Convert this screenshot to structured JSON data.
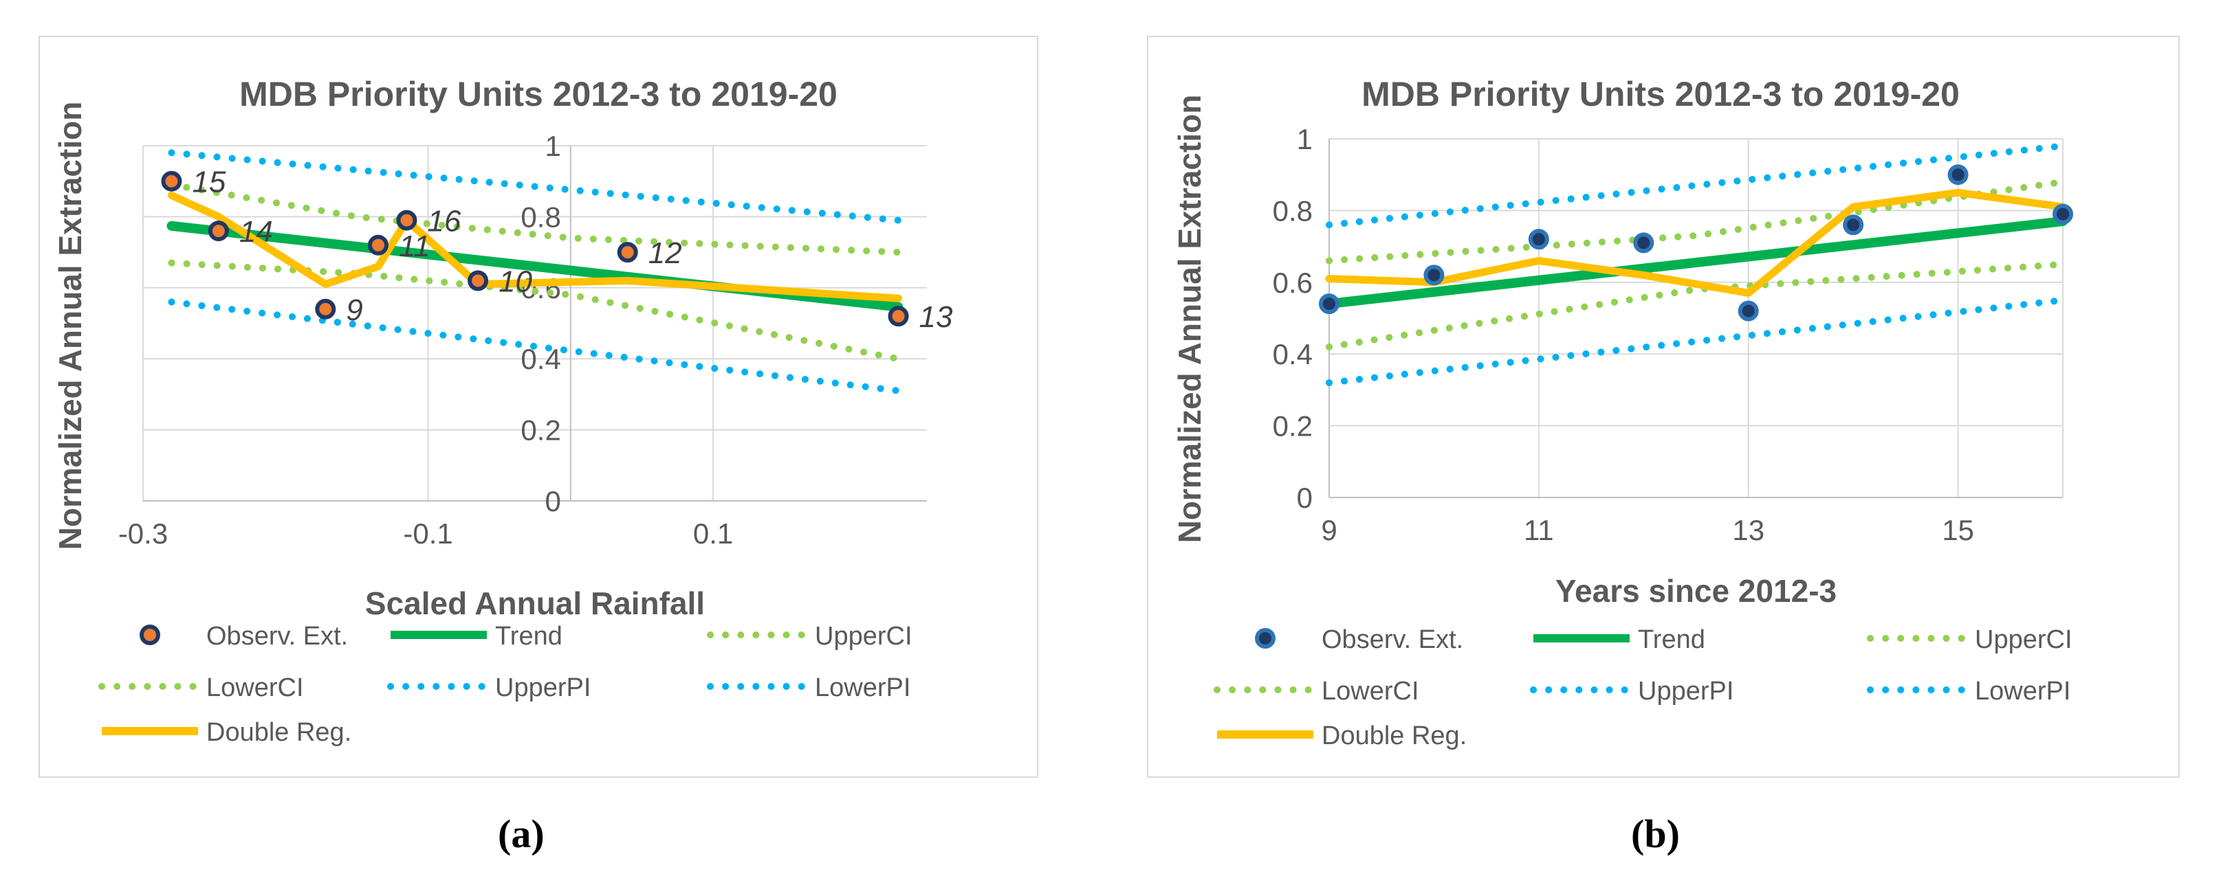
{
  "chart_data": [
    {
      "type": "scatter",
      "panel_label": "a",
      "title": "MDB Priority Units 2012-3 to 2019-20",
      "xlabel": "Scaled Annual Rainfall",
      "ylabel": "Normalized Annual Extraction",
      "xlim": [
        -0.3,
        0.25
      ],
      "ylim": [
        0,
        1
      ],
      "x_ticks": [
        -0.3,
        -0.1,
        0.1
      ],
      "x_tick_labels": [
        "-0.3",
        "-0.1",
        "0.1"
      ],
      "y_ticks": [
        0,
        0.2,
        0.4,
        0.6,
        0.8,
        1
      ],
      "y_tick_labels": [
        "0",
        "0.2",
        "0.4",
        "0.6",
        "0.8",
        "1"
      ],
      "y_axis_crosses_at_x": 0,
      "grid": true,
      "legend_position": "bottom",
      "points": {
        "name": "Observ. Ext.",
        "color": "#ED7D31",
        "values": [
          {
            "x": -0.28,
            "y": 0.9,
            "label": "15"
          },
          {
            "x": -0.247,
            "y": 0.76,
            "label": "14"
          },
          {
            "x": -0.172,
            "y": 0.54,
            "label": "9"
          },
          {
            "x": -0.135,
            "y": 0.72,
            "label": "11"
          },
          {
            "x": -0.115,
            "y": 0.79,
            "label": "16"
          },
          {
            "x": -0.065,
            "y": 0.62,
            "label": "10"
          },
          {
            "x": 0.04,
            "y": 0.7,
            "label": "12"
          },
          {
            "x": 0.23,
            "y": 0.52,
            "label": "13"
          }
        ]
      },
      "lines": [
        {
          "name": "Trend",
          "color": "#00B050",
          "style": "solid",
          "x": [
            -0.28,
            0.23
          ],
          "y": [
            0.774,
            0.546
          ]
        },
        {
          "name": "UpperCI",
          "color": "#92D050",
          "style": "dotted",
          "x": [
            -0.28,
            -0.15,
            0.0,
            0.23
          ],
          "y": [
            0.89,
            0.8,
            0.74,
            0.7
          ]
        },
        {
          "name": "LowerCI",
          "color": "#92D050",
          "style": "dotted",
          "x": [
            -0.28,
            -0.15,
            0.0,
            0.23
          ],
          "y": [
            0.67,
            0.64,
            0.58,
            0.4
          ]
        },
        {
          "name": "UpperPI",
          "color": "#00B0F0",
          "style": "dotted",
          "x": [
            -0.28,
            0.23
          ],
          "y": [
            0.98,
            0.79
          ]
        },
        {
          "name": "LowerPI",
          "color": "#00B0F0",
          "style": "dotted",
          "x": [
            -0.28,
            0.23
          ],
          "y": [
            0.56,
            0.31
          ]
        },
        {
          "name": "Double Reg.",
          "color": "#FFC000",
          "style": "solid",
          "x": [
            -0.28,
            -0.247,
            -0.172,
            -0.135,
            -0.115,
            -0.065,
            0.04,
            0.23
          ],
          "y": [
            0.86,
            0.8,
            0.61,
            0.66,
            0.79,
            0.61,
            0.62,
            0.57
          ]
        }
      ],
      "legend": [
        "Observ. Ext.",
        "Trend",
        "UpperCI",
        "LowerCI",
        "UpperPI",
        "LowerPI",
        "Double Reg."
      ]
    },
    {
      "type": "scatter",
      "panel_label": "b",
      "title": "MDB Priority Units 2012-3 to 2019-20",
      "xlabel": "Years since 2012-3",
      "ylabel": "Normalized Annual Extraction",
      "xlim": [
        9,
        16
      ],
      "ylim": [
        0,
        1
      ],
      "x_ticks": [
        9,
        11,
        13,
        15
      ],
      "x_tick_labels": [
        "9",
        "11",
        "13",
        "15"
      ],
      "y_ticks": [
        0,
        0.2,
        0.4,
        0.6,
        0.8,
        1
      ],
      "y_tick_labels": [
        "0",
        "0.2",
        "0.4",
        "0.6",
        "0.8",
        "1"
      ],
      "grid": true,
      "legend_position": "bottom",
      "points": {
        "name": "Observ. Ext.",
        "color": "#2E75B6",
        "values": [
          {
            "x": 9,
            "y": 0.54
          },
          {
            "x": 10,
            "y": 0.62
          },
          {
            "x": 11,
            "y": 0.72
          },
          {
            "x": 12,
            "y": 0.71
          },
          {
            "x": 13,
            "y": 0.52
          },
          {
            "x": 14,
            "y": 0.76
          },
          {
            "x": 15,
            "y": 0.9
          },
          {
            "x": 16,
            "y": 0.79
          }
        ]
      },
      "lines": [
        {
          "name": "Trend",
          "color": "#00B050",
          "style": "solid",
          "x": [
            9,
            16
          ],
          "y": [
            0.54,
            0.77
          ]
        },
        {
          "name": "UpperCI",
          "color": "#92D050",
          "style": "dotted",
          "x": [
            9,
            12.5,
            16
          ],
          "y": [
            0.66,
            0.73,
            0.88
          ]
        },
        {
          "name": "LowerCI",
          "color": "#92D050",
          "style": "dotted",
          "x": [
            9,
            12.5,
            16
          ],
          "y": [
            0.42,
            0.58,
            0.65
          ]
        },
        {
          "name": "UpperPI",
          "color": "#00B0F0",
          "style": "dotted",
          "x": [
            9,
            16
          ],
          "y": [
            0.76,
            0.98
          ]
        },
        {
          "name": "LowerPI",
          "color": "#00B0F0",
          "style": "dotted",
          "x": [
            9,
            16
          ],
          "y": [
            0.32,
            0.55
          ]
        },
        {
          "name": "Double Reg.",
          "color": "#FFC000",
          "style": "solid",
          "x": [
            9,
            10,
            11,
            12,
            13,
            14,
            15,
            16
          ],
          "y": [
            0.61,
            0.6,
            0.66,
            0.62,
            0.57,
            0.81,
            0.85,
            0.81
          ]
        }
      ],
      "legend": [
        "Observ. Ext.",
        "Trend",
        "UpperCI",
        "LowerCI",
        "UpperPI",
        "LowerPI",
        "Double Reg."
      ]
    }
  ],
  "captions": {
    "a": "(a)",
    "b": "(b)"
  }
}
